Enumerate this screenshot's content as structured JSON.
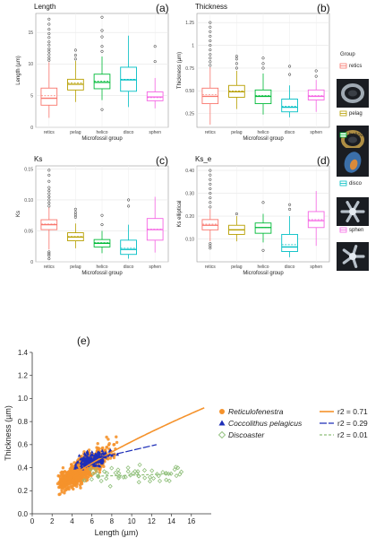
{
  "figure": {
    "group_legend_title": "Group",
    "groups": [
      "retics",
      "pelag",
      "helico",
      "disco",
      "sphen"
    ],
    "group_colors": {
      "retics": "#f8766d",
      "pelag": "#b79f00",
      "helico": "#00ba38",
      "disco": "#00bfc4",
      "sphen": "#f564e3"
    }
  },
  "chart_data": [
    {
      "type": "box",
      "panel": "(a)",
      "title": "Length",
      "ylabel": "Length (µm)",
      "xlabel": "Microfossil group",
      "categories": [
        "retics",
        "pelag",
        "helico",
        "disco",
        "sphen"
      ],
      "ylim": [
        0,
        18
      ],
      "yticks": [
        0,
        5,
        10,
        15
      ],
      "boxes": [
        {
          "min": 1.5,
          "q1": 3.5,
          "median": 4.6,
          "mean": 5.0,
          "q3": 6.2,
          "max": 10.3,
          "outliers": [
            10.6,
            11.0,
            11.5,
            12.0,
            12.4,
            13.0,
            13.5,
            14.2,
            14.8,
            15.5,
            16.3,
            17.1
          ]
        },
        {
          "min": 4.0,
          "q1": 5.9,
          "median": 6.8,
          "mean": 7.0,
          "q3": 7.6,
          "max": 10.5,
          "outliers": [
            10.8,
            11.4,
            12.2
          ]
        },
        {
          "min": 4.3,
          "q1": 6.1,
          "median": 7.1,
          "mean": 7.3,
          "q3": 8.4,
          "max": 11.2,
          "outliers": [
            2.8,
            12.0,
            12.8,
            14.3,
            15.3,
            17.4
          ]
        },
        {
          "min": 3.2,
          "q1": 5.7,
          "median": 7.5,
          "mean": 7.6,
          "q3": 9.5,
          "max": 14.5,
          "outliers": []
        },
        {
          "min": 3.0,
          "q1": 4.2,
          "median": 4.8,
          "mean": 4.7,
          "q3": 5.6,
          "max": 7.8,
          "outliers": [
            10.4,
            12.8
          ]
        }
      ]
    },
    {
      "type": "box",
      "panel": "(b)",
      "title": "Thickness",
      "ylabel": "Thickness (µm)",
      "xlabel": "Microfossil group",
      "categories": [
        "retics",
        "pelag",
        "helico",
        "disco",
        "sphen"
      ],
      "ylim": [
        0.1,
        1.35
      ],
      "yticks": [
        0.25,
        0.5,
        0.75,
        1.0,
        1.25
      ],
      "boxes": [
        {
          "min": 0.13,
          "q1": 0.36,
          "median": 0.44,
          "mean": 0.46,
          "q3": 0.53,
          "max": 0.76,
          "outliers": [
            0.78,
            0.82,
            0.86,
            0.9,
            0.95,
            1.0,
            1.05,
            1.1,
            1.15,
            1.2,
            1.25
          ]
        },
        {
          "min": 0.3,
          "q1": 0.43,
          "median": 0.49,
          "mean": 0.5,
          "q3": 0.56,
          "max": 0.72,
          "outliers": [
            0.75,
            0.8,
            0.85,
            0.88
          ]
        },
        {
          "min": 0.24,
          "q1": 0.36,
          "median": 0.44,
          "mean": 0.45,
          "q3": 0.51,
          "max": 0.69,
          "outliers": [
            0.75,
            0.8,
            0.86
          ]
        },
        {
          "min": 0.21,
          "q1": 0.27,
          "median": 0.32,
          "mean": 0.33,
          "q3": 0.41,
          "max": 0.56,
          "outliers": [
            0.68,
            0.77
          ]
        },
        {
          "min": 0.27,
          "q1": 0.4,
          "median": 0.44,
          "mean": 0.45,
          "q3": 0.51,
          "max": 0.62,
          "outliers": [
            0.66,
            0.72
          ]
        }
      ]
    },
    {
      "type": "box",
      "panel": "(c)",
      "title": "Ks",
      "ylabel": "Ks",
      "xlabel": "Microfossil group",
      "categories": [
        "retics",
        "pelag",
        "helico",
        "disco",
        "sphen"
      ],
      "ylim": [
        0,
        0.155
      ],
      "yticks": [
        0.0,
        0.05,
        0.1,
        0.15
      ],
      "boxes": [
        {
          "min": 0.02,
          "q1": 0.052,
          "median": 0.06,
          "mean": 0.061,
          "q3": 0.068,
          "max": 0.088,
          "outliers": [
            0.005,
            0.01,
            0.013,
            0.016,
            0.09,
            0.095,
            0.1,
            0.105,
            0.11,
            0.115,
            0.12,
            0.13,
            0.14,
            0.148
          ]
        },
        {
          "min": 0.022,
          "q1": 0.034,
          "median": 0.04,
          "mean": 0.041,
          "q3": 0.047,
          "max": 0.062,
          "outliers": [
            0.072,
            0.076,
            0.08,
            0.085
          ]
        },
        {
          "min": 0.014,
          "q1": 0.024,
          "median": 0.03,
          "mean": 0.031,
          "q3": 0.036,
          "max": 0.05,
          "outliers": [
            0.06,
            0.075
          ]
        },
        {
          "min": 0.005,
          "q1": 0.012,
          "median": 0.02,
          "mean": 0.022,
          "q3": 0.035,
          "max": 0.06,
          "outliers": [
            0.09,
            0.1
          ]
        },
        {
          "min": 0.015,
          "q1": 0.035,
          "median": 0.052,
          "mean": 0.053,
          "q3": 0.07,
          "max": 0.105,
          "outliers": []
        }
      ]
    },
    {
      "type": "box",
      "panel": "(d)",
      "title": "Ks_e",
      "ylabel": "Ks elliptical",
      "xlabel": "Microfossil group",
      "categories": [
        "retics",
        "pelag",
        "helico",
        "disco",
        "sphen"
      ],
      "ylim": [
        0,
        0.42
      ],
      "yticks": [
        0.1,
        0.2,
        0.3,
        0.4
      ],
      "boxes": [
        {
          "min": 0.09,
          "q1": 0.14,
          "median": 0.16,
          "mean": 0.165,
          "q3": 0.185,
          "max": 0.23,
          "outliers": [
            0.06,
            0.07,
            0.08,
            0.24,
            0.26,
            0.28,
            0.3,
            0.32,
            0.34,
            0.36,
            0.38,
            0.4
          ]
        },
        {
          "min": 0.09,
          "q1": 0.12,
          "median": 0.14,
          "mean": 0.14,
          "q3": 0.16,
          "max": 0.2,
          "outliers": [
            0.21
          ]
        },
        {
          "min": 0.085,
          "q1": 0.125,
          "median": 0.15,
          "mean": 0.15,
          "q3": 0.17,
          "max": 0.21,
          "outliers": [
            0.05,
            0.26
          ]
        },
        {
          "min": 0.02,
          "q1": 0.045,
          "median": 0.065,
          "mean": 0.075,
          "q3": 0.12,
          "max": 0.2,
          "outliers": [
            0.23,
            0.25
          ]
        },
        {
          "min": 0.07,
          "q1": 0.15,
          "median": 0.18,
          "mean": 0.185,
          "q3": 0.22,
          "max": 0.31,
          "outliers": []
        }
      ]
    },
    {
      "type": "scatter",
      "panel": "(e)",
      "xlabel": "Length (µm)",
      "ylabel": "Thickness (µm)",
      "xlim": [
        0,
        18
      ],
      "ylim": [
        0,
        1.4
      ],
      "xticks": [
        0,
        2,
        4,
        6,
        8,
        10,
        12,
        14,
        16
      ],
      "yticks": [
        0,
        0.2,
        0.4,
        0.6,
        0.8,
        1.0,
        1.2,
        1.4
      ],
      "series": [
        {
          "name": "Reticulofenestra",
          "marker": "circle",
          "color": "#f5922b",
          "r2": "r2 = 0.71",
          "fit": {
            "kind": "power",
            "a": 0.125,
            "b": 0.7,
            "xrange": [
              2.8,
              17.5
            ]
          }
        },
        {
          "name": "Coccolithus pelagicus",
          "marker": "triangle",
          "color": "#1e2fb8",
          "r2": "r2 = 0.29",
          "fit": {
            "kind": "linear",
            "m": 0.02,
            "c": 0.35,
            "xrange": [
              5,
              12.5
            ]
          }
        },
        {
          "name": "Discoaster",
          "marker": "diamond",
          "color": "#8fbf7a",
          "r2": "r2 = 0.01",
          "fit": {
            "kind": "linear",
            "m": 0.0025,
            "c": 0.31,
            "xrange": [
              6.5,
              14
            ]
          }
        }
      ]
    }
  ]
}
